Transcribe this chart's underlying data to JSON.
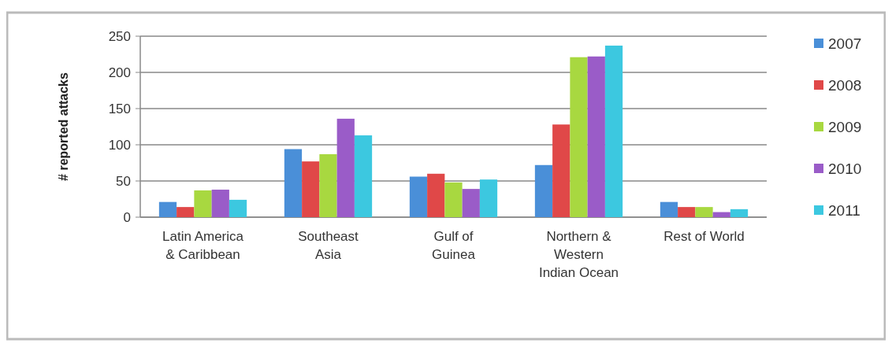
{
  "chart_data": {
    "type": "bar",
    "ylabel": "# reported attacks",
    "categories": [
      "Latin America & Caribbean",
      "Southeast Asia",
      "Gulf of Guinea",
      "Northern & Western Indian Ocean",
      "Rest of World"
    ],
    "series": [
      {
        "name": "2007",
        "color": "#4a8fd8",
        "values": [
          21,
          94,
          56,
          72,
          21
        ]
      },
      {
        "name": "2008",
        "color": "#e04848",
        "values": [
          14,
          77,
          60,
          128,
          14
        ]
      },
      {
        "name": "2009",
        "color": "#a8d840",
        "values": [
          37,
          87,
          48,
          221,
          14
        ]
      },
      {
        "name": "2010",
        "color": "#9a5cc8",
        "values": [
          38,
          136,
          39,
          222,
          7
        ]
      },
      {
        "name": "2011",
        "color": "#3cc8e0",
        "values": [
          24,
          113,
          52,
          237,
          11
        ]
      }
    ],
    "ylim": [
      0,
      250
    ],
    "yticks": [
      0,
      50,
      100,
      150,
      200,
      250
    ],
    "grid": "y",
    "legend": "right"
  }
}
